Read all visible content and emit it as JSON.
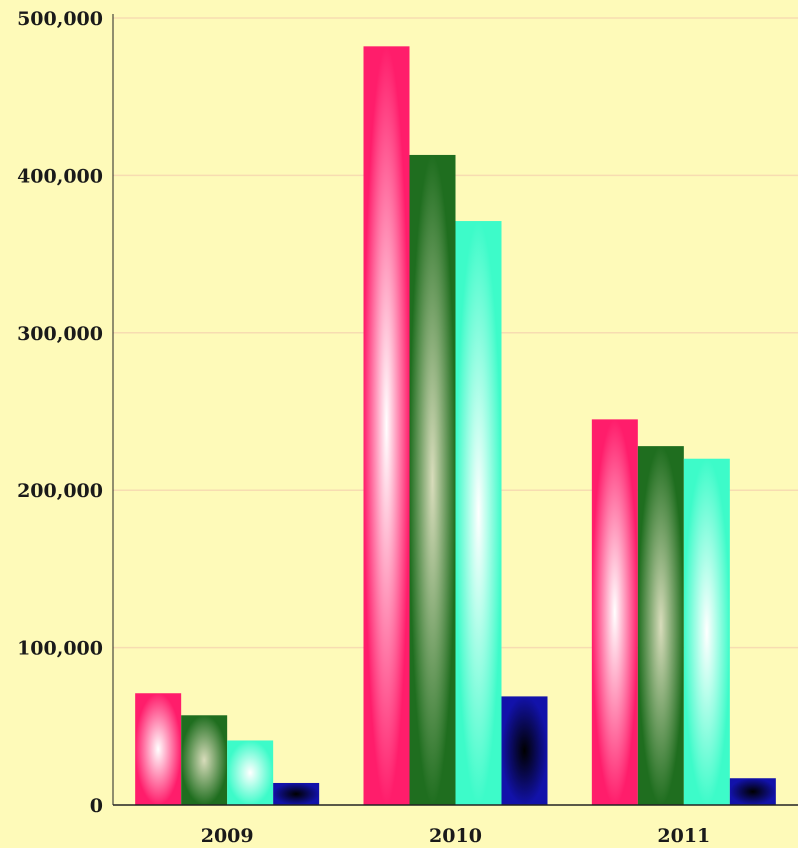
{
  "chart_data": {
    "type": "bar",
    "title": "",
    "xlabel": "",
    "ylabel": "",
    "categories": [
      "2009",
      "2010",
      "2011"
    ],
    "ylim": [
      0,
      500000
    ],
    "yticks": [
      0,
      100000,
      200000,
      300000,
      400000,
      500000
    ],
    "ytick_labels": [
      "0",
      "100,000",
      "200,000",
      "300,000",
      "400,000",
      "500,000"
    ],
    "grid": true,
    "legend": "none",
    "series": [
      {
        "values": [
          71000,
          482000,
          245000
        ],
        "color_edge": "#ff1d6b",
        "color_center": "#ffffff"
      },
      {
        "values": [
          57000,
          413000,
          228000
        ],
        "color_edge": "#1f6e1f",
        "color_center": "#d8dcbb"
      },
      {
        "values": [
          41000,
          371000,
          220000
        ],
        "color_edge": "#3dfbc9",
        "color_center": "#ffffff"
      },
      {
        "values": [
          14000,
          69000,
          17000
        ],
        "color_edge": "#1212aa",
        "color_center": "#000000"
      }
    ],
    "colors": {
      "background": "#fefab9",
      "gridline": "#f7dcb1",
      "axis": "#222222"
    }
  }
}
